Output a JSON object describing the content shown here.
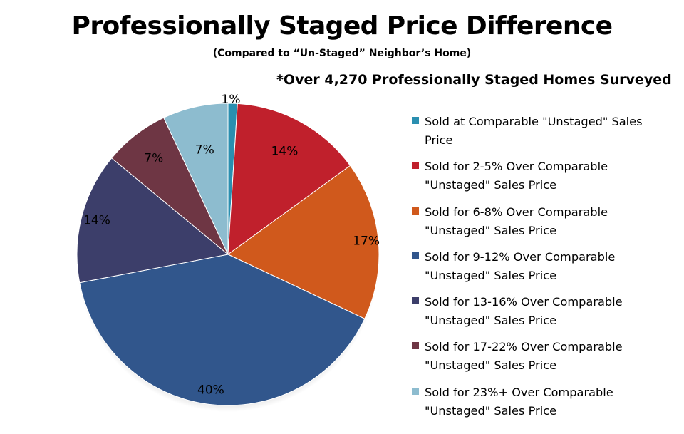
{
  "chart_data": {
    "type": "pie",
    "title": "Professionally Staged Price Difference",
    "subtitle": "(Compared to “Un-Staged” Neighbor’s Home)",
    "annotation": "*Over 4,270 Professionally Staged Homes Surveyed",
    "legend_position": "right",
    "slices": [
      {
        "label": "Sold at Comparable \"Unstaged\" Sales Price",
        "value": 1,
        "value_label": "1%",
        "color": "#2a8fb0"
      },
      {
        "label": "Sold for 2-5% Over Comparable \"Unstaged\" Sales Price",
        "value": 14,
        "value_label": "14%",
        "color": "#c0202c"
      },
      {
        "label": "Sold for 6-8% Over Comparable \"Unstaged\" Sales Price",
        "value": 17,
        "value_label": "17%",
        "color": "#d0591c"
      },
      {
        "label": "Sold for 9-12% Over Comparable \"Unstaged\" Sales Price",
        "value": 40,
        "value_label": "40%",
        "color": "#31568c"
      },
      {
        "label": "Sold for 13-16% Over Comparable \"Unstaged\" Sales Price",
        "value": 14,
        "value_label": "14%",
        "color": "#3c3e6a"
      },
      {
        "label": "Sold for 17-22% Over Comparable \"Unstaged\" Sales Price",
        "value": 7,
        "value_label": "7%",
        "color": "#6e3644"
      },
      {
        "label": "Sold for 23%+ Over Comparable \"Unstaged\" Sales Price",
        "value": 7,
        "value_label": "7%",
        "color": "#8dbccf"
      }
    ]
  }
}
